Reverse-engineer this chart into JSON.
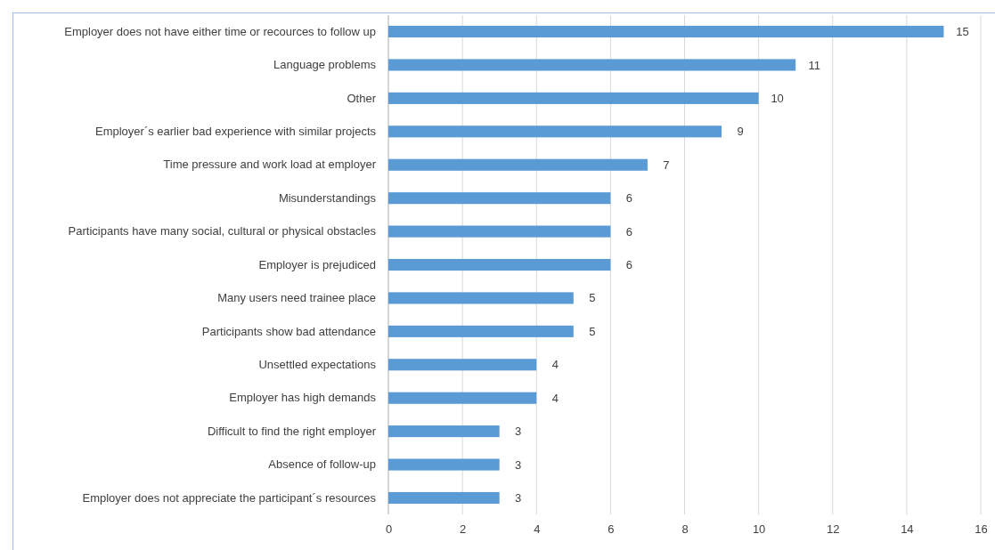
{
  "chart_data": {
    "type": "bar",
    "orientation": "horizontal",
    "categories": [
      "Employer does not have either time or recources to follow up",
      "Language problems",
      "Other",
      "Employer´s earlier bad experience with similar projects",
      "Time pressure and work load at employer",
      "Misunderstandings",
      "Participants have many social, cultural or physical obstacles",
      "Employer is prejudiced",
      "Many users need trainee place",
      "Participants show bad attendance",
      "Unsettled expectations",
      "Employer has high demands",
      "Difficult to find the right employer",
      "Absence of follow-up",
      "Employer does not appreciate the participant´s resources"
    ],
    "values": [
      15,
      11,
      10,
      9,
      7,
      6,
      6,
      6,
      5,
      5,
      4,
      4,
      3,
      3,
      3
    ],
    "color": "#5b9bd5",
    "xlim": [
      0,
      16
    ],
    "xticks": [
      0,
      2,
      4,
      6,
      8,
      10,
      12,
      14,
      16
    ],
    "grid": "x",
    "data_labels": true
  }
}
